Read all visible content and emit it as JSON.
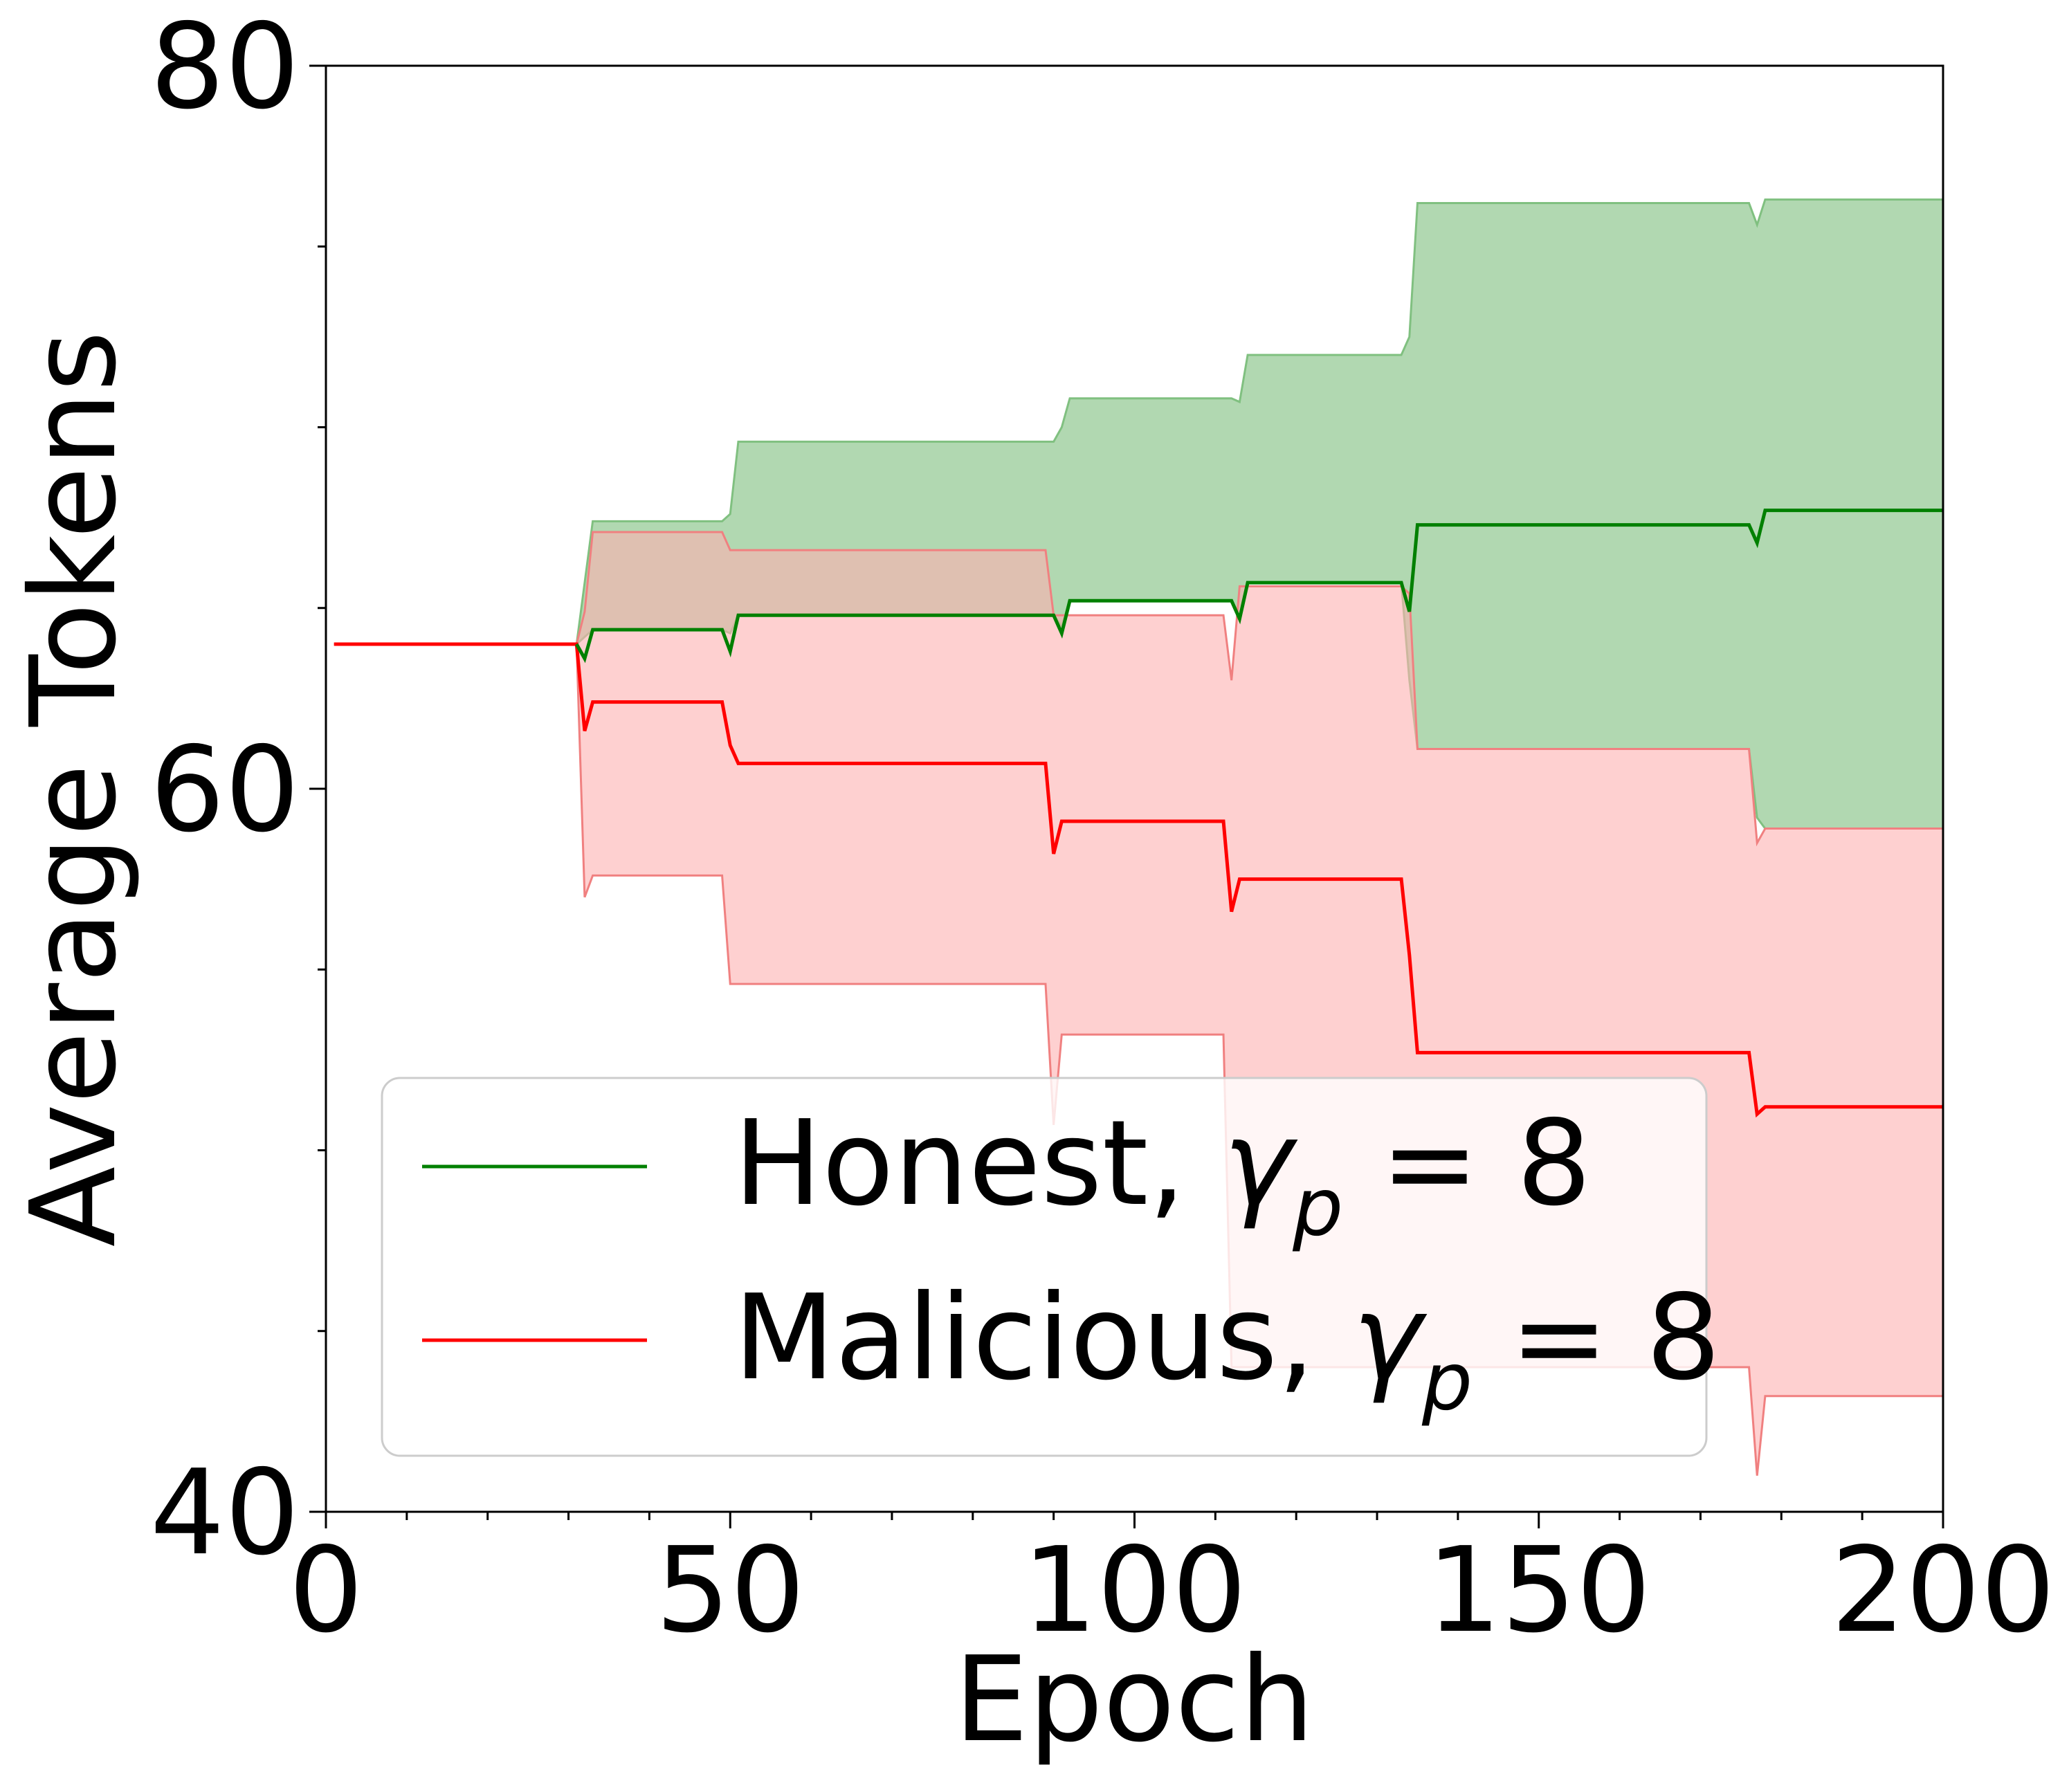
{
  "chart_data": {
    "type": "line",
    "xlabel": "Epoch",
    "ylabel": "Average Tokens",
    "xlim": [
      0,
      200
    ],
    "ylim": [
      40,
      80
    ],
    "xticks": [
      0,
      50,
      100,
      150,
      200
    ],
    "yticks": [
      40,
      60,
      80
    ],
    "grid": false,
    "legend_position": "lower-left",
    "series": [
      {
        "name": "Honest, γp = 8",
        "legend_prefix": "Honest, ",
        "legend_symbol": "γ",
        "legend_subscript": "p",
        "legend_suffix": " = 8",
        "color": "#008000",
        "fill_color": "#b1d8b1",
        "fill_edge_color": "#80c080",
        "x": [
          31,
          32,
          33,
          49,
          50,
          51,
          90,
          91,
          92,
          112,
          113,
          114,
          133,
          134,
          135,
          176,
          177,
          178,
          200
        ],
        "mean": [
          64.0,
          63.6,
          64.4,
          64.4,
          63.8,
          64.8,
          64.8,
          64.3,
          65.2,
          65.2,
          64.7,
          65.7,
          65.7,
          64.9,
          67.3,
          67.3,
          66.8,
          67.7,
          67.7
        ],
        "upper": [
          64.0,
          65.7,
          67.4,
          67.4,
          67.6,
          69.6,
          69.6,
          70.0,
          70.8,
          70.8,
          70.7,
          72.0,
          72.0,
          72.5,
          76.2,
          76.2,
          75.6,
          76.3,
          76.3
        ],
        "lower": [
          64.0,
          64.2,
          64.4,
          64.4,
          64.3,
          64.8,
          64.8,
          64.5,
          65.2,
          65.2,
          64.7,
          65.7,
          65.7,
          63.0,
          61.1,
          61.1,
          59.2,
          58.9,
          58.9
        ]
      },
      {
        "name": "Malicious, γp = 8",
        "legend_prefix": "Malicious, ",
        "legend_symbol": "γ",
        "legend_subscript": "p",
        "legend_suffix": " = 8",
        "color": "#ff0000",
        "fill_color": "#fdb0b0",
        "fill_edge_color": "#f08080",
        "x": [
          1,
          31,
          32,
          33,
          49,
          50,
          51,
          89,
          90,
          91,
          111,
          112,
          113,
          133,
          134,
          135,
          176,
          177,
          178,
          200
        ],
        "mean": [
          64.0,
          64.0,
          61.6,
          62.4,
          62.4,
          61.2,
          60.7,
          60.7,
          58.2,
          59.1,
          59.1,
          56.6,
          57.5,
          57.5,
          55.4,
          52.7,
          52.7,
          51.0,
          51.2,
          51.2
        ],
        "upper": [
          64.0,
          64.0,
          64.9,
          67.1,
          67.1,
          66.6,
          66.6,
          66.6,
          64.8,
          64.8,
          64.8,
          63.0,
          65.6,
          65.6,
          65.4,
          61.1,
          61.1,
          58.5,
          58.9,
          58.9
        ],
        "lower": [
          64.0,
          64.0,
          57.0,
          57.6,
          57.6,
          54.6,
          54.6,
          54.6,
          50.7,
          53.2,
          53.2,
          44.0,
          44.0,
          44.0,
          44.0,
          44.0,
          44.0,
          41.0,
          43.2,
          43.2
        ]
      }
    ]
  }
}
